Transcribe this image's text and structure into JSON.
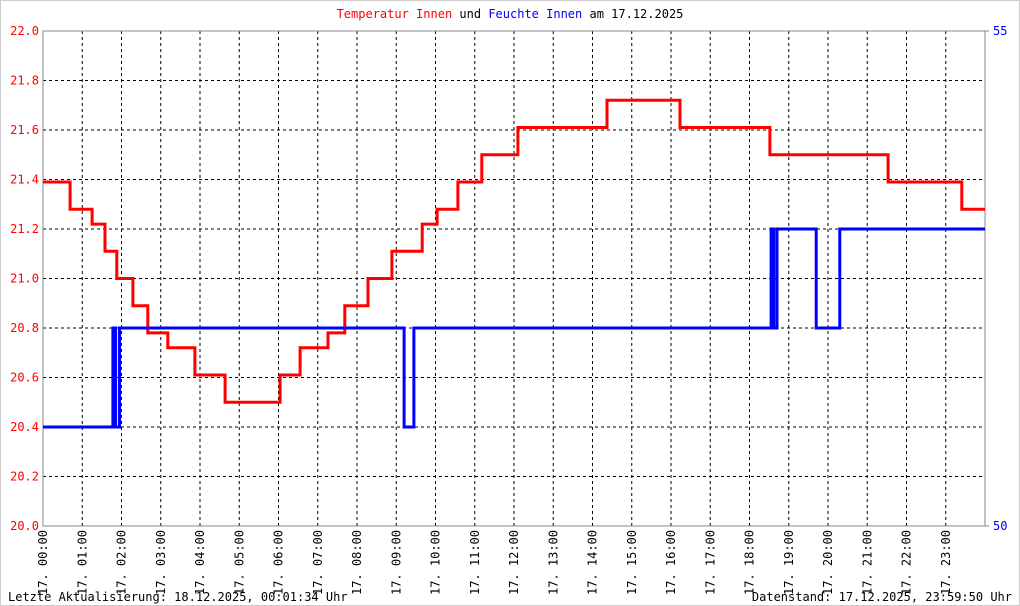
{
  "chart_data": {
    "type": "line",
    "title_suffix": "am 17.12.2025",
    "title_connector": "und",
    "xlim": [
      0,
      24
    ],
    "xticks": [
      {
        "value": 0,
        "label": "17. 00:00"
      },
      {
        "value": 1,
        "label": "17. 01:00"
      },
      {
        "value": 2,
        "label": "17. 02:00"
      },
      {
        "value": 3,
        "label": "17. 03:00"
      },
      {
        "value": 4,
        "label": "17. 04:00"
      },
      {
        "value": 5,
        "label": "17. 05:00"
      },
      {
        "value": 6,
        "label": "17. 06:00"
      },
      {
        "value": 7,
        "label": "17. 07:00"
      },
      {
        "value": 8,
        "label": "17. 08:00"
      },
      {
        "value": 9,
        "label": "17. 09:00"
      },
      {
        "value": 10,
        "label": "17. 10:00"
      },
      {
        "value": 11,
        "label": "17. 11:00"
      },
      {
        "value": 12,
        "label": "17. 12:00"
      },
      {
        "value": 13,
        "label": "17. 13:00"
      },
      {
        "value": 14,
        "label": "17. 14:00"
      },
      {
        "value": 15,
        "label": "17. 15:00"
      },
      {
        "value": 16,
        "label": "17. 16:00"
      },
      {
        "value": 17,
        "label": "17. 17:00"
      },
      {
        "value": 18,
        "label": "17. 18:00"
      },
      {
        "value": 19,
        "label": "17. 19:00"
      },
      {
        "value": 20,
        "label": "17. 20:00"
      },
      {
        "value": 21,
        "label": "17. 21:00"
      },
      {
        "value": 22,
        "label": "17. 22:00"
      },
      {
        "value": 23,
        "label": "17. 23:00"
      }
    ],
    "ylim": [
      20,
      22
    ],
    "yticks": [
      {
        "value": 20,
        "label": "20.0"
      },
      {
        "value": 20.2,
        "label": "20.2"
      },
      {
        "value": 20.4,
        "label": "20.4"
      },
      {
        "value": 20.6,
        "label": "20.6"
      },
      {
        "value": 20.8,
        "label": "20.8"
      },
      {
        "value": 21,
        "label": "21.0"
      },
      {
        "value": 21.2,
        "label": "21.2"
      },
      {
        "value": 21.4,
        "label": "21.4"
      },
      {
        "value": 21.6,
        "label": "21.6"
      },
      {
        "value": 21.8,
        "label": "21.8"
      },
      {
        "value": 22,
        "label": "22.0"
      }
    ],
    "y2lim": [
      50,
      55
    ],
    "y2ticks": [
      50,
      55
    ],
    "y2color": "#0000ff",
    "grid": true,
    "series": [
      {
        "name": "Temperatur Innen",
        "color": "#ff0000",
        "x": [
          0,
          0.69,
          0.69,
          1.25,
          1.25,
          1.58,
          1.58,
          1.88,
          1.88,
          2.29,
          2.29,
          2.67,
          2.67,
          3.18,
          3.18,
          3.87,
          3.87,
          4.64,
          4.64,
          6.04,
          6.04,
          6.55,
          6.55,
          7.26,
          7.26,
          7.69,
          7.69,
          8.28,
          8.28,
          8.89,
          8.89,
          9.66,
          9.66,
          10.04,
          10.04,
          10.57,
          10.57,
          11.18,
          11.18,
          12.1,
          12.1,
          14.37,
          14.37,
          16.23,
          16.23,
          18.52,
          18.52,
          21.53,
          21.53,
          23.41,
          23.41,
          24
        ],
        "values": [
          21.39,
          21.39,
          21.28,
          21.28,
          21.22,
          21.22,
          21.11,
          21.11,
          21.0,
          21.0,
          20.89,
          20.89,
          20.78,
          20.78,
          20.72,
          20.72,
          20.61,
          20.61,
          20.5,
          20.5,
          20.61,
          20.61,
          20.72,
          20.72,
          20.78,
          20.78,
          20.89,
          20.89,
          21.0,
          21.0,
          21.11,
          21.11,
          21.22,
          21.22,
          21.28,
          21.28,
          21.39,
          21.39,
          21.5,
          21.5,
          21.61,
          21.61,
          21.72,
          21.72,
          21.61,
          21.61,
          21.5,
          21.5,
          21.39,
          21.39,
          21.28,
          21.28
        ]
      },
      {
        "name": "Feuchte Innen",
        "color": "#0000ff",
        "axis": "y2",
        "x": [
          0,
          1.78,
          1.78,
          1.85,
          1.85,
          1.95,
          1.95,
          9.2,
          9.2,
          9.45,
          9.45,
          18.55,
          18.55,
          18.62,
          18.62,
          18.7,
          18.7,
          19.7,
          19.7,
          20.3,
          20.3,
          24
        ],
        "values": [
          51,
          51,
          52,
          52,
          51,
          51,
          52,
          52,
          51,
          51,
          52,
          52,
          53,
          53,
          52,
          52,
          53,
          53,
          52,
          52,
          53,
          53
        ]
      }
    ],
    "footer_left": "Letzte Aktualisierung: 18.12.2025, 00:01:34 Uhr",
    "footer_right": "Datenstand: 17.12.2025, 23:59:50 Uhr"
  }
}
